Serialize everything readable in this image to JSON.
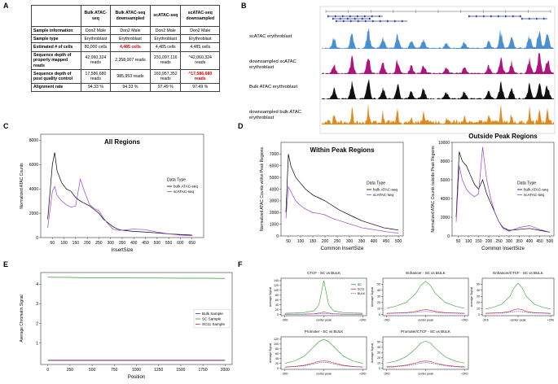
{
  "panel_labels": [
    "A",
    "B",
    "C",
    "D",
    "E",
    "F"
  ],
  "table": {
    "header": [
      "Bulk ATAC-seq",
      "Bulk ATAC-seq downsampled",
      "scATAC-seq",
      "scATAC-seq downsampled"
    ],
    "rows": [
      {
        "label": "Sample information",
        "cells": [
          "Don2 Male",
          "Don2 Male",
          "Don2 Male",
          "Don2 Male"
        ]
      },
      {
        "label": "Sample type",
        "cells": [
          "Erythroblast",
          "Erythroblast",
          "Erythroblast",
          "Erythroblast"
        ]
      },
      {
        "label": "Estimated # of cells",
        "cells": [
          "80,000 cells",
          "4,485 cells",
          "4,485 cells",
          "4,485 cells"
        ]
      },
      {
        "label": "Sequence depth of properly mapped reads",
        "cells": [
          "42,060,324 reads",
          "2,358,007 reads",
          "231,097,116 reads",
          "^42,060,324 reads"
        ]
      },
      {
        "label": "Sequence depth of post quality control",
        "cells": [
          "17,586,680 reads",
          "985,953 reads",
          "160,957,352 reads",
          "^17,586,680 reads"
        ]
      },
      {
        "label": "Alignment rate",
        "cells": [
          "94.33 %",
          "94.33 %",
          "97.49 %",
          "97.49 %"
        ]
      }
    ],
    "red_cells": [
      [
        2,
        1
      ],
      [
        4,
        3
      ]
    ],
    "red_color": "#d40000"
  },
  "tracks": [
    {
      "name": "scATAC erythroblast",
      "color": "#4a90d0"
    },
    {
      "name": "downsampled scATAC erythroblast",
      "color": "#b0137a"
    },
    {
      "name": "Bulk ATAC erythroblast",
      "color": "#111111"
    },
    {
      "name": "downsampled bulk ATAC erythroblast",
      "color": "#e08a1e"
    }
  ],
  "chart_data": [
    {
      "type": "line",
      "title": "All Regions",
      "title_inside": true,
      "xlabel": "InsertSize",
      "ylabel": "Normalized ATAC Counts",
      "x": [
        30,
        50,
        60,
        70,
        90,
        110,
        130,
        150,
        170,
        190,
        210,
        230,
        250,
        270,
        290,
        310,
        330,
        350,
        400,
        450,
        500,
        550,
        600,
        650
      ],
      "series": [
        {
          "name": "bulk ATAC-seq",
          "color": "#000000",
          "values": [
            1500,
            6000,
            7000,
            5500,
            4500,
            4000,
            3800,
            3300,
            3000,
            2800,
            2600,
            2300,
            2000,
            1500,
            1200,
            900,
            700,
            600,
            500,
            450,
            380,
            300,
            250,
            200
          ]
        },
        {
          "name": "scATAC-seq",
          "color": "#9b3fd6",
          "values": [
            800,
            3800,
            4200,
            3500,
            3000,
            2700,
            2500,
            2600,
            4800,
            3700,
            2700,
            2400,
            2200,
            1600,
            1100,
            700,
            600,
            600,
            700,
            650,
            450,
            300,
            200,
            150
          ]
        }
      ],
      "xlim": [
        0,
        700
      ],
      "xticks": [
        50,
        100,
        150,
        200,
        250,
        300,
        350,
        400,
        450,
        500,
        550,
        600,
        650
      ],
      "ylim": [
        0,
        8500
      ],
      "yticks": [
        0,
        2000,
        4000,
        6000,
        8000
      ],
      "legend_title": "Data Type",
      "legend": "right"
    },
    {
      "type": "line",
      "title": "Within Peak Regions",
      "title_inside": true,
      "xlabel": "Common InsertSize",
      "ylabel": "Normalized ATAC Counts within Peak Regions",
      "x": [
        40,
        50,
        60,
        80,
        100,
        120,
        150,
        180,
        200,
        230,
        260,
        290,
        320,
        350,
        380,
        410,
        440,
        470,
        500
      ],
      "series": [
        {
          "name": "bulk ATAC-seq",
          "color": "#000000",
          "values": [
            2000,
            7000,
            6000,
            5000,
            4500,
            4000,
            3500,
            3200,
            3000,
            2600,
            2200,
            1900,
            1600,
            1300,
            1100,
            900,
            700,
            600,
            500
          ]
        },
        {
          "name": "scATAC-seq",
          "color": "#9b3fd6",
          "values": [
            1500,
            4200,
            3800,
            3000,
            2600,
            2300,
            2000,
            1900,
            1800,
            1500,
            1300,
            1100,
            900,
            700,
            600,
            500,
            400,
            300,
            250
          ]
        }
      ],
      "xlim": [
        20,
        520
      ],
      "xticks": [
        50,
        100,
        150,
        200,
        250,
        300,
        350,
        400,
        450,
        500
      ],
      "ylim": [
        0,
        8000
      ],
      "yticks": [
        0,
        1000,
        2000,
        3000,
        4000,
        5000,
        6000,
        7000
      ],
      "legend_title": "Data Type",
      "legend": "right"
    },
    {
      "type": "line",
      "title": "Outside Peak Regions",
      "title_inside": false,
      "xlabel": "Common InsertSize",
      "ylabel": "Normalized ATAC Counts outside Peak Regions",
      "x": [
        40,
        55,
        70,
        90,
        110,
        130,
        150,
        170,
        190,
        210,
        230,
        250,
        270,
        300,
        350,
        400,
        450,
        500
      ],
      "series": [
        {
          "name": "bulk ATAC-seq",
          "color": "#000000",
          "values": [
            2000,
            9000,
            8000,
            7500,
            6500,
            5500,
            5000,
            6000,
            4500,
            3500,
            2500,
            1500,
            900,
            600,
            700,
            800,
            600,
            400
          ]
        },
        {
          "name": "scATAC-seq",
          "color": "#9b3fd6",
          "values": [
            1500,
            7500,
            6000,
            5000,
            4500,
            4200,
            4500,
            9500,
            6000,
            4000,
            2500,
            1500,
            800,
            500,
            900,
            1100,
            700,
            400
          ]
        }
      ],
      "xlim": [
        20,
        520
      ],
      "xticks": [
        50,
        100,
        150,
        200,
        250,
        300,
        350,
        400,
        450,
        500
      ],
      "ylim": [
        0,
        10000
      ],
      "yticks": [
        0,
        2000,
        4000,
        6000,
        8000,
        10000
      ],
      "legend_title": "Data Type",
      "legend": "right"
    },
    {
      "type": "line",
      "xlabel": "Position",
      "ylabel": "Average Chromatin Signal",
      "x": [
        0,
        250,
        500,
        750,
        1000,
        1250,
        1500,
        1750,
        2000
      ],
      "series": [
        {
          "name": "Bulk Sample",
          "color": "#2b3fbf",
          "values": [
            0.12,
            0.12,
            0.12,
            0.12,
            0.12,
            0.12,
            0.12,
            0.12,
            0.12
          ]
        },
        {
          "name": "SC Sample",
          "color": "#2e9e2e",
          "values": [
            4.36,
            4.35,
            4.33,
            4.33,
            4.32,
            4.32,
            4.31,
            4.31,
            4.3
          ]
        },
        {
          "name": "SC11 Sample",
          "color": "#d62728",
          "values": [
            0.1,
            0.1,
            0.1,
            0.1,
            0.1,
            0.1,
            0.1,
            0.1,
            0.1
          ]
        }
      ],
      "xlim": [
        -80,
        2080
      ],
      "xticks": [
        0,
        250,
        500,
        750,
        1000,
        1250,
        1500,
        1750,
        2000
      ],
      "ylim": [
        -0.1,
        4.6
      ],
      "yticks": [
        1,
        2,
        3,
        4
      ],
      "legend": "right"
    },
    {
      "type": "line",
      "title": "CTCF - SC vs BULK",
      "ylabel": "Average Signal",
      "x": [
        -2000,
        -1500,
        -1000,
        -500,
        -250,
        0,
        250,
        500,
        1000,
        1500,
        2000
      ],
      "series": [
        {
          "name": "SC",
          "color": "#2e9e2e",
          "values": [
            5,
            6,
            8,
            15,
            40,
            140,
            40,
            15,
            8,
            6,
            5
          ]
        },
        {
          "name": "SC11",
          "color": "#d62728",
          "values": [
            1,
            1,
            1.5,
            3,
            6,
            10,
            6,
            3,
            1.5,
            1,
            1
          ]
        },
        {
          "name": "BULK",
          "color": "#3a3adf",
          "dashed": true,
          "values": [
            1,
            1,
            1,
            2,
            3,
            4,
            3,
            2,
            1,
            1,
            1
          ]
        }
      ],
      "xlim": [
        -2200,
        2200
      ],
      "xticks": [
        {
          "value": -2000,
          "label": "-2Kb"
        },
        {
          "value": 0,
          "label": "center peak"
        },
        {
          "value": 2000,
          "label": "+2Kb"
        }
      ],
      "ylim": [
        -5,
        150
      ],
      "yticks": [
        0,
        20,
        40,
        60,
        80,
        100,
        120,
        140
      ],
      "legend": "upper right"
    },
    {
      "type": "line",
      "title": "Enhancer - SC vs BULK",
      "ylabel": "Average Signal",
      "x": [
        -2000,
        -1500,
        -1000,
        -500,
        -250,
        0,
        250,
        500,
        1000,
        1500,
        2000
      ],
      "series": [
        {
          "name": "SC",
          "color": "#2e9e2e",
          "values": [
            10,
            14,
            20,
            35,
            48,
            55,
            48,
            35,
            20,
            14,
            10
          ]
        },
        {
          "name": "SC11",
          "color": "#d62728",
          "values": [
            2,
            2.5,
            3,
            5,
            7,
            8,
            7,
            5,
            3,
            2.5,
            2
          ]
        },
        {
          "name": "BULK",
          "color": "#3a3adf",
          "dashed": true,
          "values": [
            1.5,
            2,
            2.5,
            3.5,
            4.5,
            5,
            4.5,
            3.5,
            2.5,
            2,
            1.5
          ]
        }
      ],
      "xlim": [
        -2200,
        2200
      ],
      "xticks": [
        {
          "value": -2000,
          "label": "-2Kb"
        },
        {
          "value": 0,
          "label": "center peak"
        },
        {
          "value": 2000,
          "label": "+2Kb"
        }
      ],
      "ylim": [
        -2,
        60
      ],
      "yticks": [
        0,
        10,
        20,
        30,
        40,
        50
      ]
    },
    {
      "type": "line",
      "title": "Enhancer/CTCF - SC vs BULK",
      "ylabel": "Average Signal",
      "x": [
        -2000,
        -1500,
        -1000,
        -500,
        -250,
        0,
        250,
        500,
        1000,
        1500,
        2000
      ],
      "series": [
        {
          "name": "SC",
          "color": "#2e9e2e",
          "values": [
            9,
            12,
            17,
            30,
            44,
            52,
            44,
            30,
            17,
            12,
            9
          ]
        },
        {
          "name": "SC11",
          "color": "#d62728",
          "values": [
            2,
            2.5,
            3,
            5,
            8,
            9,
            8,
            5,
            3,
            2.5,
            2
          ]
        },
        {
          "name": "BULK",
          "color": "#3a3adf",
          "dashed": true,
          "values": [
            1.5,
            2,
            2.5,
            3.5,
            4.5,
            5,
            4.5,
            3.5,
            2.5,
            2,
            1.5
          ]
        }
      ],
      "xlim": [
        -2200,
        2200
      ],
      "xticks": [
        {
          "value": -2000,
          "label": "-2Kb"
        },
        {
          "value": 0,
          "label": "center peak"
        },
        {
          "value": 2000,
          "label": "+2Kb"
        }
      ],
      "ylim": [
        -2,
        60
      ],
      "yticks": [
        0,
        10,
        20,
        30,
        40,
        50
      ]
    },
    {
      "type": "line",
      "title": "Promoter - SC vs BULK",
      "ylabel": "Average Signal",
      "x": [
        -2000,
        -1500,
        -1000,
        -500,
        -250,
        0,
        250,
        500,
        1000,
        1500,
        2000
      ],
      "series": [
        {
          "name": "SC",
          "color": "#2e9e2e",
          "values": [
            20,
            30,
            50,
            90,
            110,
            120,
            110,
            90,
            50,
            30,
            20
          ]
        },
        {
          "name": "SC11",
          "color": "#d62728",
          "values": [
            5,
            7,
            12,
            22,
            28,
            30,
            28,
            22,
            12,
            7,
            5
          ]
        },
        {
          "name": "BULK",
          "color": "#3a3adf",
          "dashed": true,
          "values": [
            4,
            6,
            10,
            18,
            23,
            25,
            23,
            18,
            10,
            6,
            4
          ]
        }
      ],
      "xlim": [
        -2200,
        2200
      ],
      "xticks": [
        {
          "value": -2000,
          "label": "-2Kb"
        },
        {
          "value": 0,
          "label": "center peak"
        },
        {
          "value": 2000,
          "label": "+2Kb"
        }
      ],
      "ylim": [
        -5,
        130
      ],
      "yticks": [
        0,
        20,
        40,
        60,
        80,
        100,
        120
      ]
    },
    {
      "type": "line",
      "title": "Promoter/CTCF - SC vs BULK",
      "ylabel": "Average Signal",
      "x": [
        -2000,
        -1500,
        -1000,
        -500,
        -250,
        0,
        250,
        500,
        1000,
        1500,
        2000
      ],
      "series": [
        {
          "name": "SC",
          "color": "#2e9e2e",
          "values": [
            10,
            14,
            22,
            38,
            48,
            52,
            48,
            38,
            22,
            14,
            10
          ]
        },
        {
          "name": "SC11",
          "color": "#d62728",
          "values": [
            3,
            4,
            6,
            10,
            13,
            14,
            13,
            10,
            6,
            4,
            3
          ]
        },
        {
          "name": "BULK",
          "color": "#3a3adf",
          "dashed": true,
          "values": [
            2,
            3,
            5,
            8,
            10,
            11,
            10,
            8,
            5,
            3,
            2
          ]
        }
      ],
      "xlim": [
        -2200,
        2200
      ],
      "xticks": [
        {
          "value": -2000,
          "label": "-2Kb"
        },
        {
          "value": 0,
          "label": "center peak"
        },
        {
          "value": 2000,
          "label": "+2Kb"
        }
      ],
      "ylim": [
        -2,
        60
      ],
      "yticks": [
        0,
        10,
        20,
        30,
        40,
        50
      ]
    }
  ]
}
